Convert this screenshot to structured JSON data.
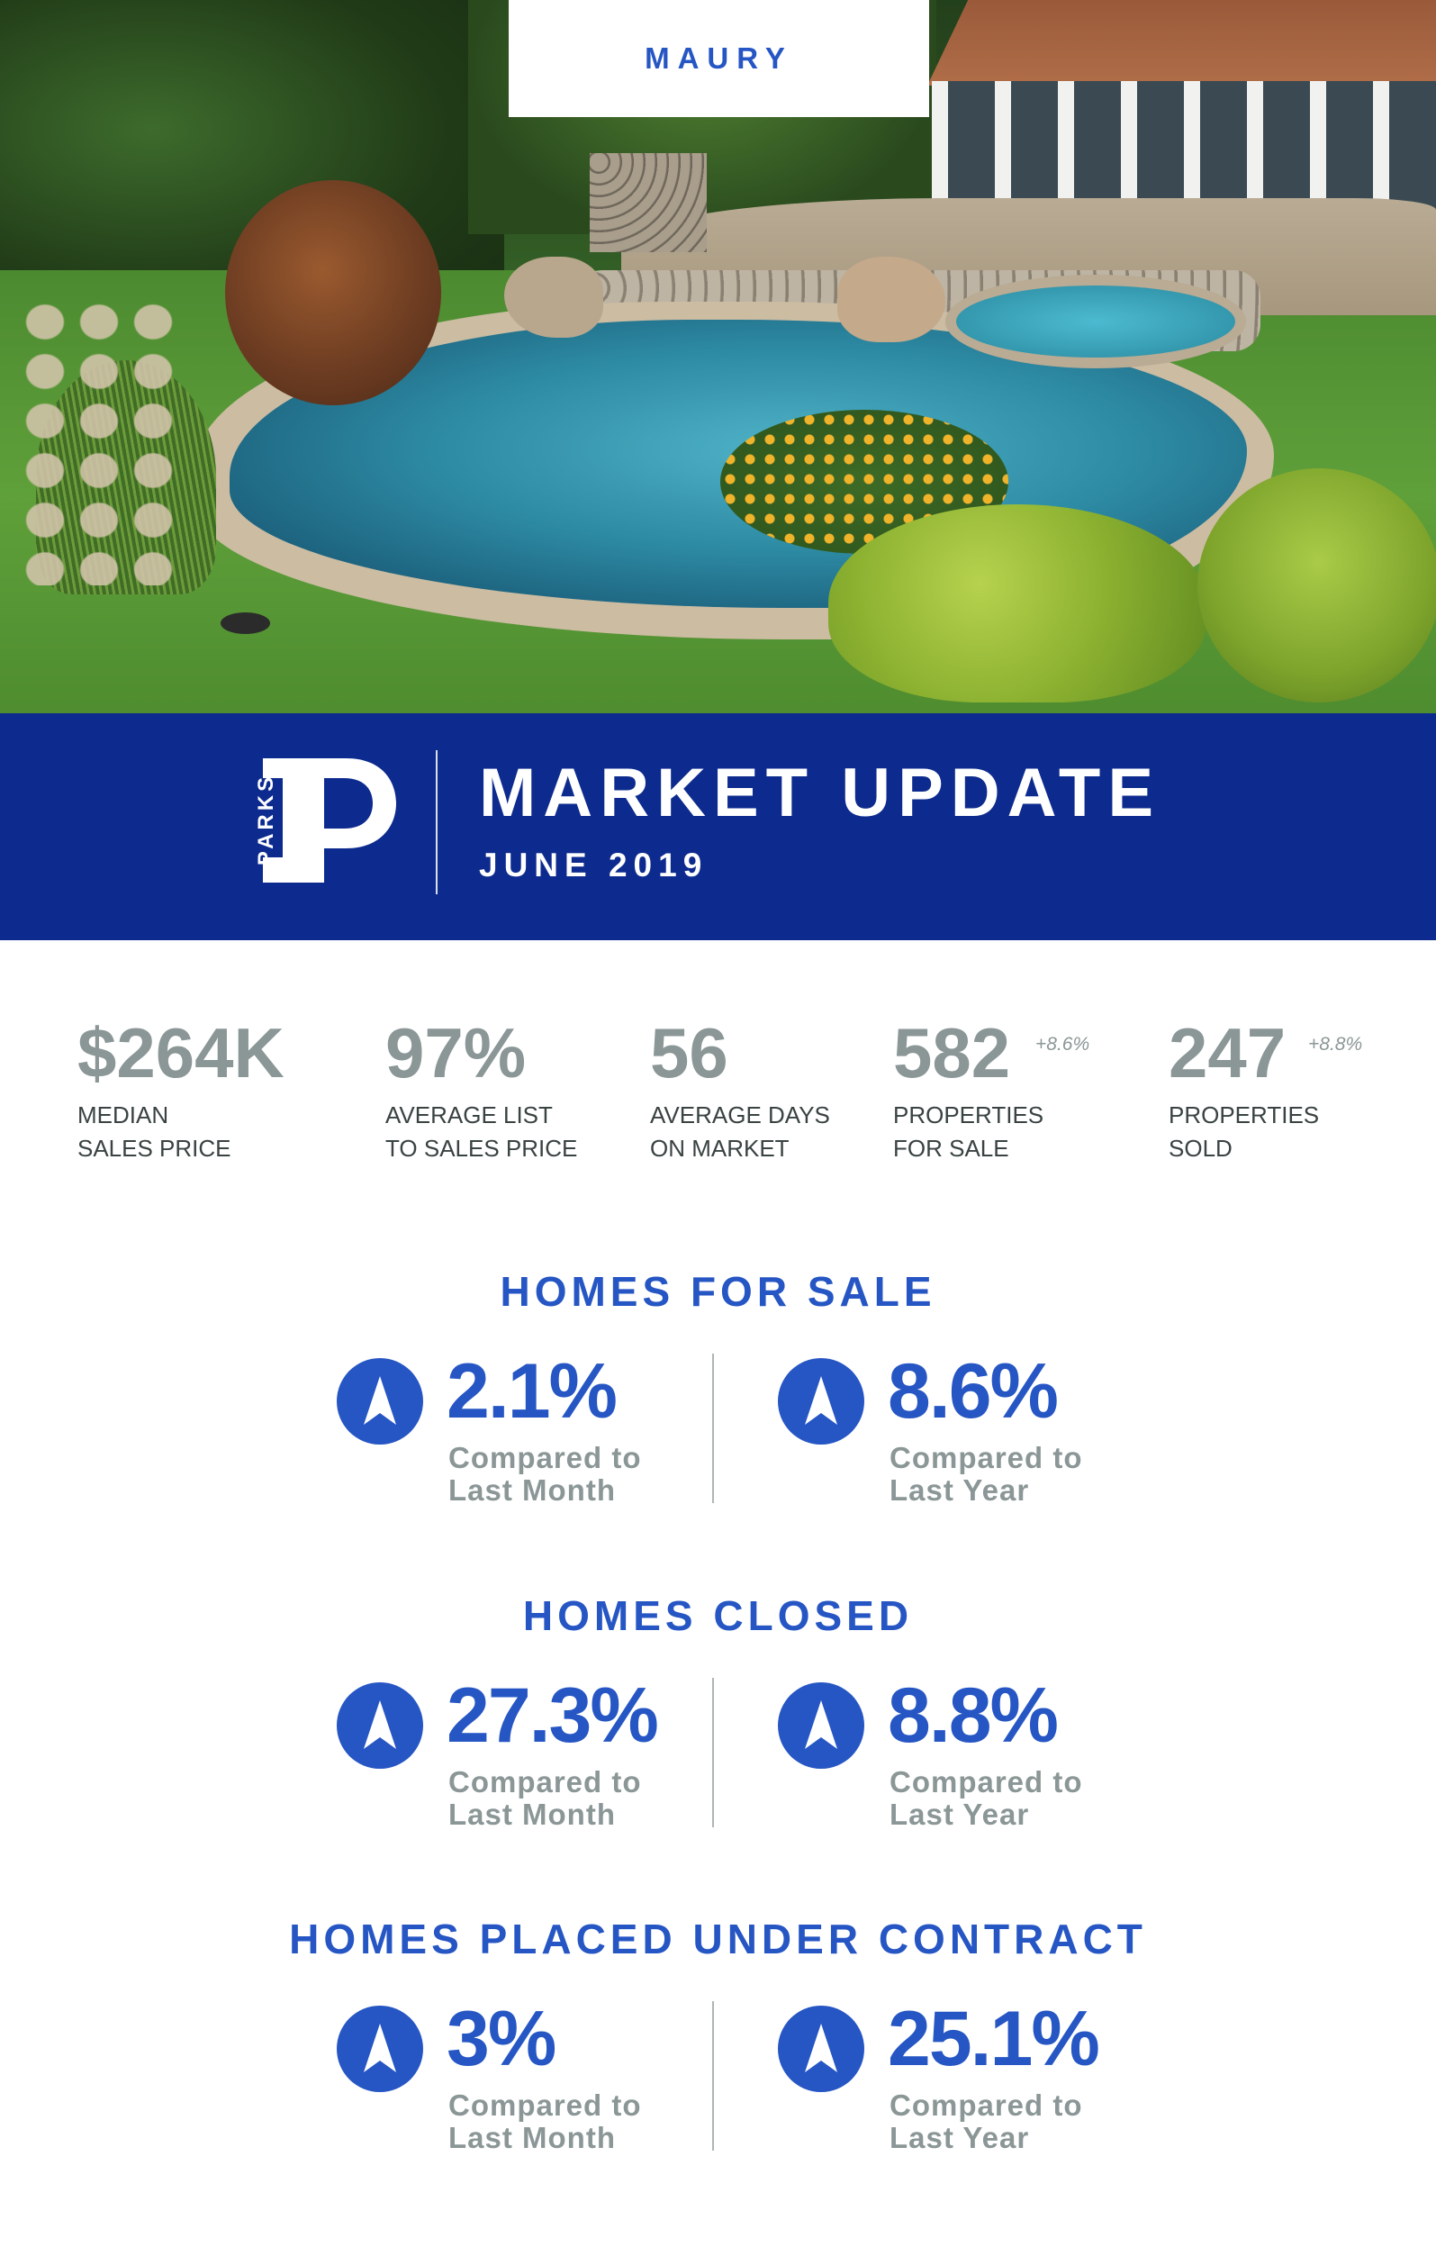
{
  "location": "MAURY",
  "brand": {
    "name": "PARKS",
    "color": "#0d2b8e",
    "accent": "#2656c4"
  },
  "header": {
    "title": "MARKET UPDATE",
    "subtitle": "JUNE 2019"
  },
  "stats": [
    {
      "value": "$264K",
      "change": "",
      "label_line1": "MEDIAN",
      "label_line2": "SALES PRICE"
    },
    {
      "value": "97%",
      "change": "",
      "label_line1": "AVERAGE LIST",
      "label_line2": "TO SALES PRICE"
    },
    {
      "value": "56",
      "change": "",
      "label_line1": "AVERAGE DAYS",
      "label_line2": "ON MARKET"
    },
    {
      "value": "582",
      "change": "+8.6%",
      "label_line1": "PROPERTIES",
      "label_line2": "FOR SALE"
    },
    {
      "value": "247",
      "change": "+8.8%",
      "label_line1": "PROPERTIES",
      "label_line2": "SOLD"
    }
  ],
  "sections": [
    {
      "title": "HOMES FOR SALE",
      "month": {
        "value": "2.1%",
        "caption_line1": "Compared to",
        "caption_line2": "Last Month",
        "direction": "up",
        "icon": "up-arrow-icon"
      },
      "year": {
        "value": "8.6%",
        "caption_line1": "Compared to",
        "caption_line2": "Last Year",
        "direction": "up",
        "icon": "up-arrow-icon"
      }
    },
    {
      "title": "HOMES CLOSED",
      "month": {
        "value": "27.3%",
        "caption_line1": "Compared to",
        "caption_line2": "Last Month",
        "direction": "up",
        "icon": "up-arrow-icon"
      },
      "year": {
        "value": "8.8%",
        "caption_line1": "Compared to",
        "caption_line2": "Last Year",
        "direction": "up",
        "icon": "up-arrow-icon"
      }
    },
    {
      "title": "HOMES PLACED UNDER CONTRACT",
      "month": {
        "value": "3%",
        "caption_line1": "Compared to",
        "caption_line2": "Last Month",
        "direction": "up",
        "icon": "up-arrow-icon"
      },
      "year": {
        "value": "25.1%",
        "caption_line1": "Compared to",
        "caption_line2": "Last Year",
        "direction": "up",
        "icon": "up-arrow-icon"
      }
    }
  ]
}
